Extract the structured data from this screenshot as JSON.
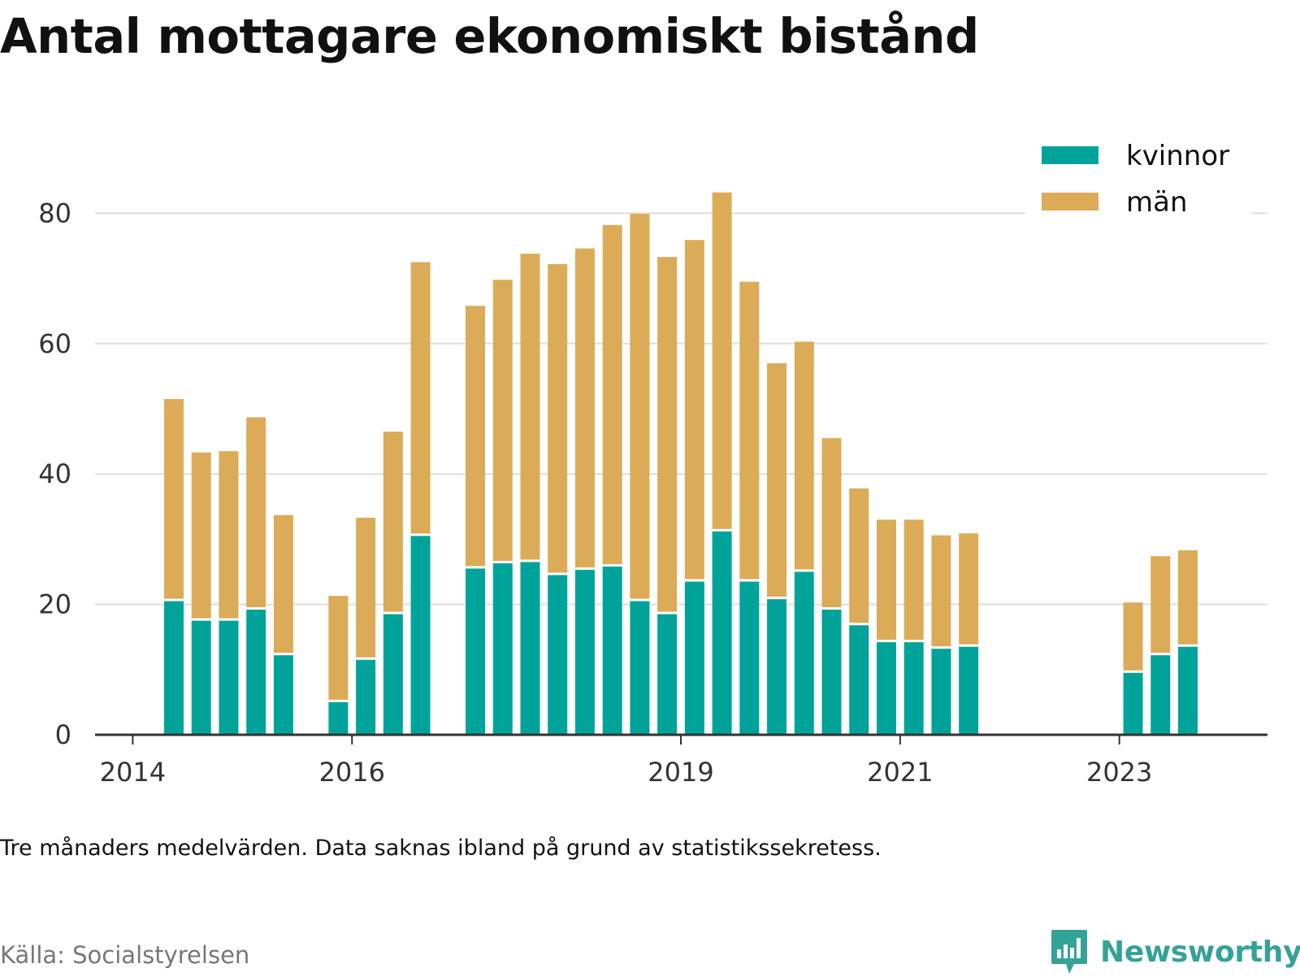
{
  "title": "Antal mottagare ekonomiskt bistånd",
  "note": "Tre månaders medelvärden. Data saknas ibland på grund av statistikssekretess.",
  "source": "Källa: Socialstyrelsen",
  "brand": "Newsworthy",
  "colors": {
    "kvinnor": "#00a39a",
    "man": "#dbab57",
    "grid": "#dddddd",
    "axis": "#333333",
    "brand": "#35a297"
  },
  "chart_data": {
    "type": "bar",
    "stacked": true,
    "ylim": [
      0,
      90
    ],
    "yticks": [
      0,
      20,
      40,
      60,
      80
    ],
    "xticks": [
      "2014",
      "2016",
      "2019",
      "2021",
      "2023"
    ],
    "grid": true,
    "legend_position": "top-right",
    "series_names": [
      "kvinnor",
      "män"
    ],
    "bars": [
      {
        "period": "2014 Q2",
        "kvinnor": 20.5,
        "man": 31.0
      },
      {
        "period": "2014 Q3",
        "kvinnor": 17.5,
        "man": 25.8
      },
      {
        "period": "2014 Q4",
        "kvinnor": 17.5,
        "man": 26.0
      },
      {
        "period": "2015 Q1",
        "kvinnor": 19.2,
        "man": 29.5
      },
      {
        "period": "2015 Q2",
        "kvinnor": 12.2,
        "man": 21.5
      },
      {
        "period": "2015 Q4",
        "kvinnor": 5.0,
        "man": 16.3
      },
      {
        "period": "2016 Q1",
        "kvinnor": 11.5,
        "man": 21.8
      },
      {
        "period": "2016 Q2",
        "kvinnor": 18.5,
        "man": 28.0
      },
      {
        "period": "2016 Q3",
        "kvinnor": 30.5,
        "man": 42.0
      },
      {
        "period": "2017 Q1",
        "kvinnor": 25.5,
        "man": 40.3
      },
      {
        "period": "2017 Q2",
        "kvinnor": 26.3,
        "man": 43.5
      },
      {
        "period": "2017 Q3",
        "kvinnor": 26.5,
        "man": 47.3
      },
      {
        "period": "2017 Q4",
        "kvinnor": 24.5,
        "man": 47.7
      },
      {
        "period": "2018 Q1",
        "kvinnor": 25.3,
        "man": 49.3
      },
      {
        "period": "2018 Q2",
        "kvinnor": 25.8,
        "man": 52.4
      },
      {
        "period": "2018 Q3",
        "kvinnor": 20.5,
        "man": 59.4
      },
      {
        "period": "2018 Q4",
        "kvinnor": 18.5,
        "man": 54.8
      },
      {
        "period": "2019 Q1",
        "kvinnor": 23.5,
        "man": 52.4
      },
      {
        "period": "2019 Q2",
        "kvinnor": 31.2,
        "man": 52.0
      },
      {
        "period": "2019 Q3",
        "kvinnor": 23.5,
        "man": 46.0
      },
      {
        "period": "2019 Q4",
        "kvinnor": 20.8,
        "man": 36.2
      },
      {
        "period": "2020 Q1",
        "kvinnor": 25.0,
        "man": 35.3
      },
      {
        "period": "2020 Q2",
        "kvinnor": 19.2,
        "man": 26.3
      },
      {
        "period": "2020 Q3",
        "kvinnor": 16.8,
        "man": 21.0
      },
      {
        "period": "2020 Q4",
        "kvinnor": 14.2,
        "man": 18.8
      },
      {
        "period": "2021 Q1",
        "kvinnor": 14.2,
        "man": 18.8
      },
      {
        "period": "2021 Q2",
        "kvinnor": 13.2,
        "man": 17.4
      },
      {
        "period": "2021 Q3",
        "kvinnor": 13.5,
        "man": 17.4
      },
      {
        "period": "2023 Q1",
        "kvinnor": 9.5,
        "man": 10.8
      },
      {
        "period": "2023 Q2",
        "kvinnor": 12.2,
        "man": 15.2
      },
      {
        "period": "2023 Q3",
        "kvinnor": 13.5,
        "man": 14.8
      }
    ]
  }
}
